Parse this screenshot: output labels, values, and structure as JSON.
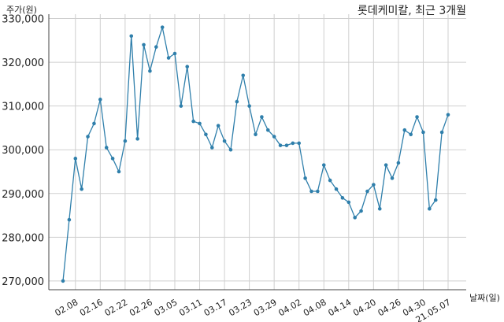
{
  "chart_data": {
    "type": "line",
    "title": "롯데케미칼, 최근 3개월",
    "ylabel": "주가(원)",
    "xlabel": "날짜(일)",
    "ylim": [
      268000,
      331000
    ],
    "yticks": [
      270000,
      280000,
      290000,
      300000,
      310000,
      320000,
      330000
    ],
    "ytick_labels": [
      "270,000",
      "280,000",
      "290,000",
      "300,000",
      "310,000",
      "320,000",
      "330,000"
    ],
    "xtick_labels": [
      "02.08",
      "02.16",
      "02.22",
      "02.26",
      "03.05",
      "03.11",
      "03.17",
      "03.23",
      "03.29",
      "04.02",
      "04.08",
      "04.14",
      "04.20",
      "04.26",
      "04.30",
      "21.05.07"
    ],
    "xtick_positions": [
      2,
      6,
      10,
      14,
      18,
      22,
      26,
      30,
      34,
      38,
      42,
      46,
      50,
      54,
      58,
      62
    ],
    "grid": true,
    "series": [
      {
        "color": "#2f7fab",
        "values": [
          270000,
          284000,
          298000,
          291000,
          303000,
          306000,
          311500,
          300500,
          298000,
          295000,
          302000,
          326000,
          302500,
          324000,
          318000,
          323500,
          328000,
          321000,
          322000,
          310000,
          319000,
          306500,
          306000,
          303500,
          300500,
          305500,
          302000,
          300000,
          311000,
          317000,
          310000,
          303500,
          307500,
          304500,
          303000,
          301000,
          301000,
          301500,
          301500,
          293500,
          290500,
          290500,
          296500,
          293000,
          291000,
          289000,
          288000,
          284500,
          286000,
          290500,
          292000,
          286500,
          296500,
          293500,
          297000,
          304500,
          303500,
          307500,
          304000,
          286500,
          288500,
          304000,
          308000
        ]
      }
    ]
  }
}
